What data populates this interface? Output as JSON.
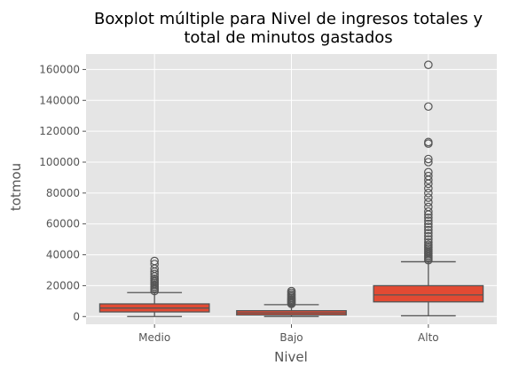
{
  "chart_data": {
    "type": "boxplot",
    "title_line1": "Boxplot múltiple para Nivel de ingresos totales y",
    "title_line2": "total de minutos gastados",
    "xlabel": "Nivel",
    "ylabel": "totmou",
    "ylim": [
      -5000,
      170000
    ],
    "yticks": [
      0,
      20000,
      40000,
      60000,
      80000,
      100000,
      120000,
      140000,
      160000
    ],
    "ytick_labels": [
      "0",
      "20000",
      "40000",
      "60000",
      "80000",
      "100000",
      "120000",
      "140000",
      "160000"
    ],
    "grid": true,
    "colors": {
      "box": "#E24A33",
      "line": "#555555",
      "background": "#E5E5E5",
      "grid": "#FFFFFF"
    },
    "categories": [
      "Medio",
      "Bajo",
      "Alto"
    ],
    "boxes": [
      {
        "label": "Medio",
        "whisker_low": 0,
        "q1": 3000,
        "median": 5500,
        "q3": 8200,
        "whisker_high": 15500,
        "outliers": [
          16500,
          17500,
          18500,
          19500,
          20500,
          21500,
          22500,
          23500,
          24500,
          26000,
          27500,
          29000,
          31000,
          34000,
          36000
        ]
      },
      {
        "label": "Bajo",
        "whisker_low": 0,
        "q1": 1000,
        "median": 2300,
        "q3": 3800,
        "whisker_high": 7700,
        "outliers": [
          8200,
          8800,
          9400,
          10000,
          10600,
          11200,
          12000,
          12800,
          13600,
          14500,
          15500,
          16500
        ]
      },
      {
        "label": "Alto",
        "whisker_low": 500,
        "q1": 9500,
        "median": 14000,
        "q3": 20000,
        "whisker_high": 35500,
        "outliers": [
          36500,
          37500,
          38500,
          39500,
          40500,
          41500,
          42500,
          43500,
          44500,
          45500,
          46500,
          48000,
          50000,
          52000,
          54000,
          56000,
          58000,
          60000,
          62000,
          64000,
          66000,
          68000,
          71000,
          74000,
          77000,
          80000,
          83000,
          86000,
          88500,
          91000,
          93500,
          100000,
          102000,
          112000,
          113000,
          136000,
          163000
        ]
      }
    ]
  }
}
